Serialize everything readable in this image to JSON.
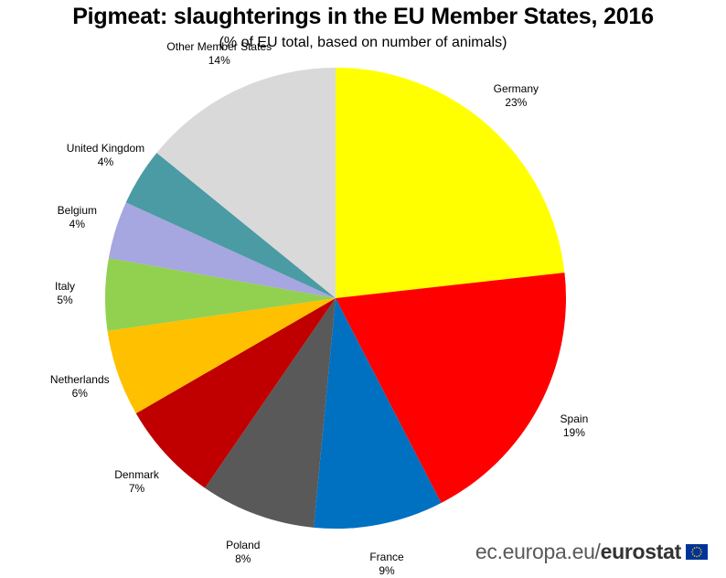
{
  "chart_data": {
    "type": "pie",
    "title": "Pigmeat: slaughterings in the EU Member States, 2016",
    "subtitle": "(% of EU total, based on number of animals)",
    "slices": [
      {
        "label": "Germany",
        "value": 23,
        "value_label": "23%",
        "color": "#ffff00"
      },
      {
        "label": "Spain",
        "value": 19,
        "value_label": "19%",
        "color": "#ff0000"
      },
      {
        "label": "France",
        "value": 9,
        "value_label": "9%",
        "color": "#0070c0"
      },
      {
        "label": "Poland",
        "value": 8,
        "value_label": "8%",
        "color": "#595959"
      },
      {
        "label": "Denmark",
        "value": 7,
        "value_label": "7%",
        "color": "#c00000"
      },
      {
        "label": "Netherlands",
        "value": 6,
        "value_label": "6%",
        "color": "#ffc000"
      },
      {
        "label": "Italy",
        "value": 5,
        "value_label": "5%",
        "color": "#92d050"
      },
      {
        "label": "Belgium",
        "value": 4,
        "value_label": "4%",
        "color": "#a6a6e0"
      },
      {
        "label": "United Kingdom",
        "value": 4,
        "value_label": "4%",
        "color": "#4a9ba3"
      },
      {
        "label": "Other Member States",
        "value": 14,
        "value_label": "14%",
        "color": "#d9d9d9"
      }
    ],
    "start": "12 o'clock",
    "direction": "clockwise"
  },
  "footer": {
    "site": "ec.europa.eu/",
    "brand": "eurostat",
    "flag_icon": "eu-flag-icon"
  }
}
